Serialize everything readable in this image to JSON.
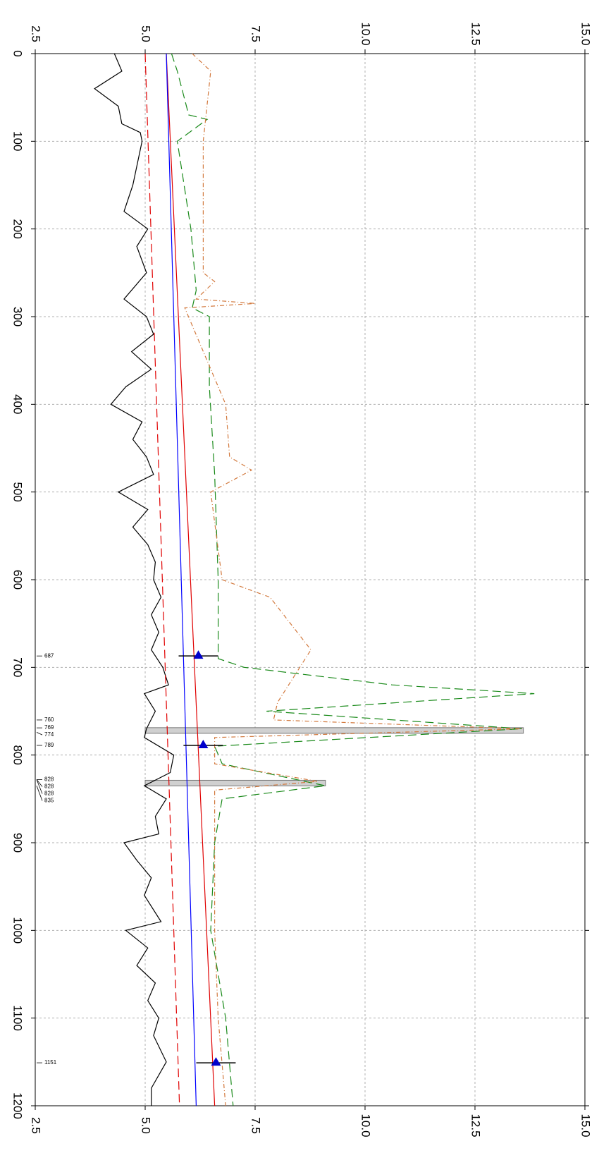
{
  "chart_data": {
    "type": "line",
    "xlim": [
      0,
      1200
    ],
    "xticks": [
      0,
      100,
      200,
      300,
      400,
      500,
      600,
      700,
      800,
      900,
      1000,
      1100,
      1200
    ],
    "ylim": [
      2.5,
      15
    ],
    "yticks": [
      2.5,
      {
        "value": 5,
        "label": "5.0"
      },
      7.5,
      {
        "value": 10,
        "label": "10.0"
      },
      12.5,
      {
        "value": 15,
        "label": "15.0"
      }
    ],
    "grid": true,
    "series": [
      {
        "color": "#000000",
        "style": "solid",
        "x": [
          0,
          20,
          40,
          60,
          80,
          90,
          100,
          150,
          180,
          200,
          220,
          250,
          280,
          300,
          320,
          340,
          360,
          380,
          400,
          420,
          440,
          460,
          480,
          500,
          520,
          540,
          560,
          580,
          600,
          620,
          640,
          660,
          680,
          700,
          720,
          730,
          750,
          770,
          780,
          800,
          820,
          835,
          850,
          870,
          890,
          900,
          920,
          940,
          960,
          990,
          1000,
          1020,
          1040,
          1060,
          1080,
          1100,
          1120,
          1150,
          1180,
          1200
        ],
        "values": [
          4.3,
          4.47,
          3.85,
          4.39,
          4.47,
          4.89,
          4.93,
          4.72,
          4.52,
          5.06,
          4.81,
          5.03,
          4.52,
          5.03,
          5.19,
          4.69,
          5.14,
          4.56,
          4.22,
          4.93,
          4.72,
          5.03,
          5.19,
          4.39,
          5.06,
          4.72,
          5.06,
          5.23,
          5.19,
          5.36,
          5.14,
          5.31,
          5.14,
          5.4,
          5.53,
          4.98,
          5.23,
          5.03,
          4.98,
          5.65,
          5.57,
          4.98,
          5.48,
          5.23,
          5.31,
          4.52,
          4.81,
          5.14,
          4.98,
          5.36,
          4.56,
          5.06,
          4.81,
          5.23,
          5.06,
          5.31,
          5.19,
          5.48,
          5.14,
          5.14
        ]
      },
      {
        "color": "#e00000",
        "style": "dashed",
        "x": [
          0,
          1200
        ],
        "values": [
          5.0,
          5.78
        ]
      },
      {
        "color": "#e00000",
        "style": "solid",
        "x": [
          0,
          1200
        ],
        "values": [
          5.48,
          6.58
        ]
      },
      {
        "color": "#0000ff",
        "style": "solid",
        "x": [
          0,
          1200
        ],
        "values": [
          5.48,
          6.16
        ]
      },
      {
        "color": "#1a8a1a",
        "style": "dashed",
        "x": [
          0,
          20,
          70,
          75,
          100,
          200,
          270,
          290,
          300,
          380,
          480,
          600,
          690,
          700,
          720,
          730,
          750,
          770,
          790,
          810,
          835,
          850,
          900,
          1000,
          1100,
          1200
        ],
        "values": [
          5.6,
          5.73,
          5.99,
          6.41,
          5.73,
          6.04,
          6.16,
          6.07,
          6.46,
          6.46,
          6.58,
          6.66,
          6.66,
          7.25,
          10.62,
          13.85,
          7.76,
          13.57,
          6.58,
          6.75,
          9.1,
          6.75,
          6.58,
          6.49,
          6.83,
          7.0
        ]
      },
      {
        "color": "#d2783c",
        "style": "dashdot",
        "x": [
          0,
          20,
          100,
          250,
          260,
          280,
          285,
          290,
          400,
          460,
          475,
          500,
          600,
          620,
          680,
          740,
          760,
          770,
          780,
          810,
          830,
          840,
          1000,
          1100,
          1200
        ],
        "values": [
          6.07,
          6.49,
          6.32,
          6.32,
          6.58,
          6.16,
          7.5,
          5.9,
          6.83,
          6.92,
          7.42,
          6.49,
          6.75,
          7.84,
          8.77,
          8.01,
          7.92,
          13.57,
          6.58,
          6.58,
          8.93,
          6.58,
          6.58,
          6.66,
          6.83
        ]
      }
    ],
    "bar_base": 5.0,
    "bars": {
      "color": "#d0d0d0",
      "x": [
        772,
        832
      ],
      "values": [
        13.6,
        9.1
      ]
    },
    "triangles": {
      "color": "#0000cc",
      "x": [
        687,
        789,
        1151
      ],
      "values": [
        6.21,
        6.32,
        6.61
      ]
    },
    "events": [
      687,
      760,
      769,
      774,
      789,
      828,
      828,
      828,
      835,
      1151
    ]
  }
}
